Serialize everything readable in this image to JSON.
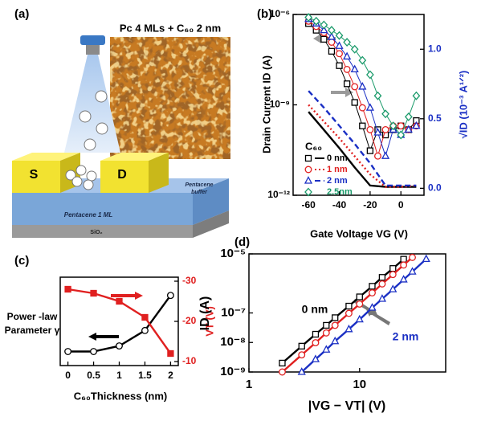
{
  "illustration": {
    "label": "(a)",
    "title": "Pc 4 MLs + C₆₀ 2 nm",
    "source": "S",
    "drain": "D",
    "layer": "Pentacene 1 ML",
    "buffer": [
      "Pentacene",
      "buffer"
    ],
    "substrate": "SiO₂"
  },
  "chart_data": [
    {
      "type": "line",
      "label": "(b)",
      "xlabel": "Gate Voltage VG (V)",
      "ylabel": "Drain Current ID (A)",
      "y2label": "√ID (10⁻³ A¹ᐟ²)",
      "legend_title": "C₆₀",
      "legend": "lower left",
      "xlim": [
        -70,
        15
      ],
      "xticks": [
        -60,
        -40,
        -20,
        0
      ],
      "ylog": true,
      "ylim": [
        1e-12,
        1e-06
      ],
      "yticks": [
        {
          "value": 1e-12,
          "label": "10⁻¹²"
        },
        {
          "value": 1e-09,
          "label": "10⁻⁹"
        },
        {
          "value": 1e-06,
          "label": "10⁻⁶"
        }
      ],
      "y2lim": [
        -0.05,
        1.25
      ],
      "y2ticks": [
        {
          "value": 0,
          "label": "0.0"
        },
        {
          "value": 0.5,
          "label": "0.5"
        },
        {
          "value": 1,
          "label": "1.0"
        }
      ],
      "y2color": "#1a2fc4",
      "x": [
        -60,
        -55,
        -50,
        -45,
        -40,
        -35,
        -30,
        -25,
        -20,
        -15,
        -10,
        -5,
        0,
        5,
        10
      ],
      "series": [
        {
          "name": "0 nm",
          "color": "#000000",
          "marker": "square",
          "fill": "open",
          "line": "thin",
          "legend_line": "solid",
          "values": [
            5e-07,
            3e-07,
            1.5e-07,
            6e-08,
            2e-08,
            5e-09,
            1.2e-09,
            2e-10,
            3e-11,
            1.5e-10,
            1e-10,
            1.5e-10,
            2e-10,
            1.5e-10,
            3e-10
          ]
        },
        {
          "name": "1 nm",
          "color": "#e02020",
          "marker": "circle",
          "fill": "open",
          "line": "thin",
          "legend_line": "dotted",
          "values": [
            6e-07,
            4e-07,
            2.5e-07,
            1.2e-07,
            5e-08,
            1.5e-08,
            4e-09,
            8e-10,
            1.5e-10,
            2e-11,
            1.5e-10,
            2e-10,
            2e-10,
            1.5e-10,
            2e-10
          ]
        },
        {
          "name": "2 nm",
          "color": "#1a2fc4",
          "marker": "triangle",
          "fill": "open",
          "line": "thin",
          "legend_line": "dashed",
          "values": [
            7e-07,
            5e-07,
            3e-07,
            1.8e-07,
            9e-08,
            4e-08,
            1.5e-08,
            4e-09,
            8e-10,
            1.2e-10,
            2e-11,
            1.5e-10,
            1e-10,
            1.5e-10,
            2e-10
          ]
        },
        {
          "name": "2.5nm",
          "color": "#1a9a6a",
          "marker": "diamond",
          "fill": "open",
          "line": "thin",
          "values": [
            8e-07,
            6e-07,
            4.5e-07,
            3e-07,
            2e-07,
            1.2e-07,
            7e-08,
            3e-08,
            1e-08,
            2e-09,
            5e-10,
            2e-10,
            1e-10,
            4e-10,
            2e-09
          ]
        },
        {
          "color": "#000000",
          "line": "solid",
          "axis": "y2",
          "x": [
            -60,
            -50,
            -40,
            -30,
            -20,
            -10,
            0,
            10
          ],
          "values": [
            0.55,
            0.42,
            0.29,
            0.15,
            0.02,
            0.01,
            0.01,
            0.01
          ]
        },
        {
          "color": "#e02020",
          "line": "dotted",
          "axis": "y2",
          "x": [
            -60,
            -50,
            -40,
            -30,
            -20,
            -10,
            0,
            10
          ],
          "values": [
            0.6,
            0.48,
            0.36,
            0.23,
            0.1,
            0.01,
            0.01,
            0.02
          ]
        },
        {
          "color": "#1a2fc4",
          "line": "dashed",
          "axis": "y2",
          "x": [
            -60,
            -50,
            -40,
            -30,
            -20,
            -10,
            0,
            10
          ],
          "values": [
            0.7,
            0.58,
            0.45,
            0.32,
            0.18,
            0.02,
            0.02,
            0.02
          ]
        }
      ]
    },
    {
      "type": "line",
      "label": "(c)",
      "xlabel": "C₆₀Thickness (nm)",
      "ylabel": [
        "Power -law",
        "Parameter γ"
      ],
      "y2label": "VT (V)",
      "xlim": [
        -0.15,
        2.15
      ],
      "xticks": [
        0,
        0.5,
        1,
        1.5,
        2
      ],
      "ylim": [
        -0.08,
        0.55
      ],
      "y2lim": [
        -9,
        -31
      ],
      "y2ticks": [
        -30,
        -20,
        -10
      ],
      "y2color": "#e02020",
      "x": [
        0,
        0.5,
        1,
        1.5,
        2
      ],
      "series": [
        {
          "color": "#000000",
          "marker": "circle",
          "fill": "open",
          "line": "solid",
          "values": [
            0.02,
            0.02,
            0.06,
            0.17,
            0.42
          ]
        },
        {
          "color": "#e02020",
          "marker": "square",
          "fill": "filled",
          "line": "solid",
          "axis": "y2",
          "values": [
            -28,
            -27,
            -25,
            -21,
            -12
          ]
        }
      ]
    },
    {
      "type": "line",
      "label": "(d)",
      "xlabel": "|VG − VT| (V)",
      "ylabel": "ID (A)",
      "annotations": [
        "0 nm",
        "2 nm"
      ],
      "xlog": true,
      "xlim": [
        1,
        60
      ],
      "xticks": [
        1,
        10
      ],
      "ylog": true,
      "ylim": [
        1e-09,
        1e-05
      ],
      "yticks": [
        {
          "value": 1e-09,
          "label": "10⁻⁹"
        },
        {
          "value": 1e-08,
          "label": "10⁻⁸"
        },
        {
          "value": 1e-07,
          "label": "10⁻⁷"
        },
        {
          "value": 1e-05,
          "label": "10⁻⁵"
        }
      ],
      "series": [
        {
          "color": "#000000",
          "marker": "square",
          "fill": "open",
          "line": "solid",
          "x": [
            2,
            3,
            4,
            5,
            6,
            8,
            10,
            13,
            16,
            20,
            25
          ],
          "values": [
            2e-09,
            7.5e-09,
            1.9e-08,
            3.8e-08,
            6.9e-08,
            1.7e-07,
            3.5e-07,
            8e-07,
            1.6e-06,
            3.2e-06,
            6.6e-06
          ]
        },
        {
          "color": "#e02020",
          "marker": "circle",
          "fill": "open",
          "line": "solid",
          "x": [
            2,
            3,
            4,
            5,
            6,
            8,
            10,
            13,
            16,
            20,
            25,
            30
          ],
          "values": [
            1e-09,
            3.8e-09,
            9.8e-09,
            2.1e-08,
            3.8e-08,
            9.7e-08,
            2e-07,
            4.8e-07,
            9.6e-07,
            2e-06,
            4.2e-06,
            7.6e-06
          ]
        },
        {
          "color": "#1a2fc4",
          "marker": "triangle",
          "fill": "open",
          "line": "solid",
          "x": [
            3,
            4,
            5,
            6,
            8,
            10,
            13,
            16,
            20,
            25,
            30,
            40
          ],
          "values": [
            1e-09,
            2.7e-09,
            5.7e-09,
            1.1e-08,
            2.8e-08,
            6e-08,
            1.5e-07,
            3e-07,
            6.3e-07,
            1.35e-06,
            2.5e-06,
            6.7e-06
          ]
        }
      ]
    }
  ]
}
